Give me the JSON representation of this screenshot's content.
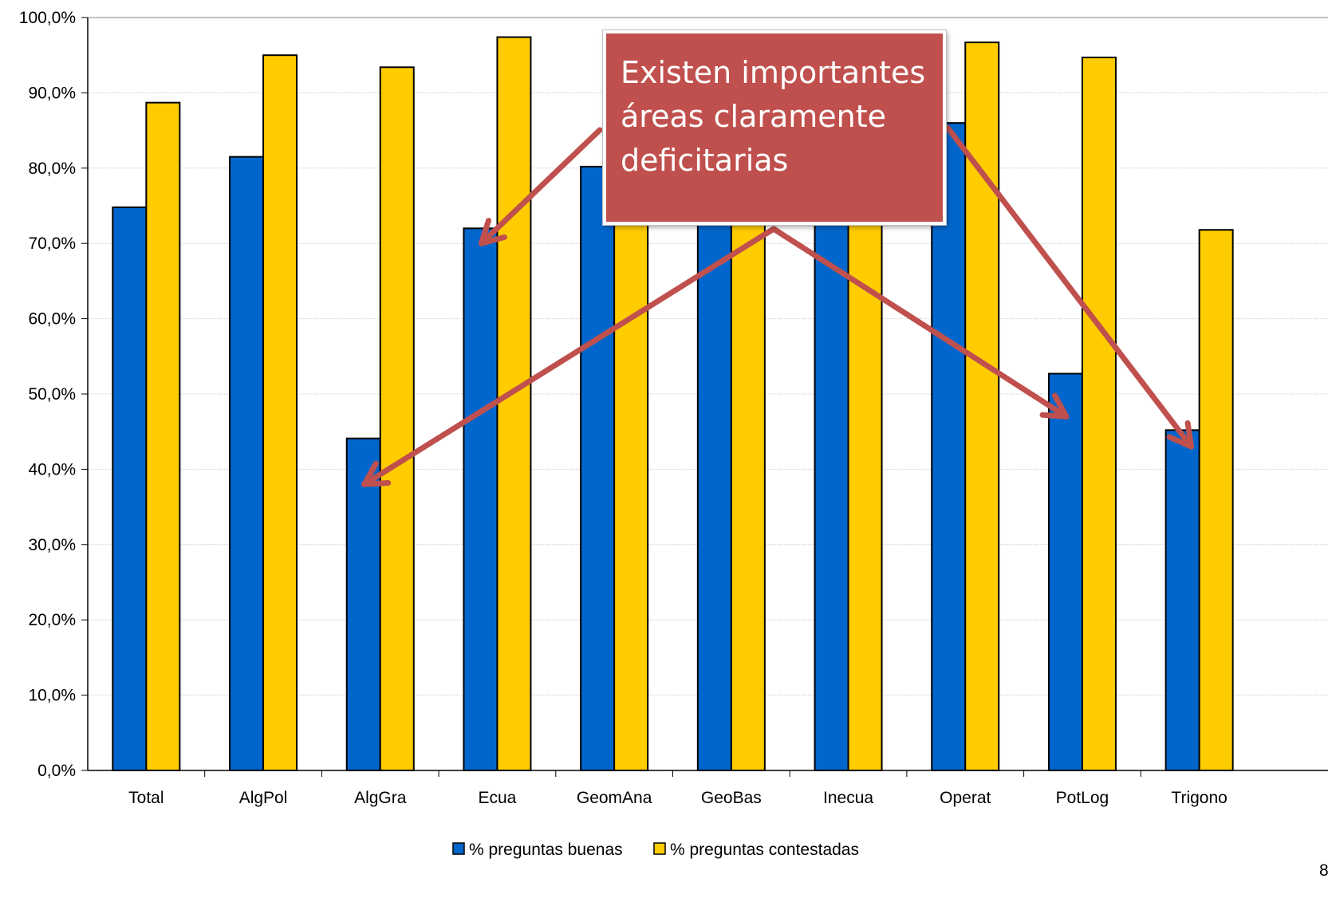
{
  "chart_data": {
    "type": "bar",
    "title": "",
    "xlabel": "",
    "ylabel": "",
    "ylim": [
      0,
      100
    ],
    "yticks": [
      "0,0%",
      "10,0%",
      "20,0%",
      "30,0%",
      "40,0%",
      "50,0%",
      "60,0%",
      "70,0%",
      "80,0%",
      "90,0%",
      "100,0%"
    ],
    "categories": [
      "Total",
      "AlgPol",
      "AlgGra",
      "Ecua",
      "GeomAna",
      "GeoBas",
      "Inecua",
      "Operat",
      "PotLog",
      "Trigono"
    ],
    "series": [
      {
        "name": "% preguntas buenas",
        "color": "#0066cc",
        "values": [
          74.8,
          81.5,
          44.1,
          72.0,
          80.2,
          72.5,
          72.5,
          86.0,
          52.7,
          45.2
        ]
      },
      {
        "name": "% preguntas contestadas",
        "color": "#ffcc00",
        "values": [
          88.7,
          95.0,
          93.4,
          97.4,
          72.5,
          72.5,
          72.5,
          96.7,
          94.7,
          71.8
        ]
      }
    ],
    "grid": true,
    "legend_position": "bottom-center",
    "annotation": {
      "lines": [
        "Existen importantes",
        "áreas claramente",
        "deficitarias"
      ],
      "color": "#c0504d",
      "arrow_color": "#c0504d",
      "arrow_targets": [
        {
          "category": "Ecua",
          "value": 70.0
        },
        {
          "category": "AlgGra",
          "value": 38.0
        },
        {
          "category": "PotLog",
          "value": 47.0
        },
        {
          "category": "Trigono",
          "value": 43.0
        }
      ]
    }
  },
  "page_number": "8"
}
